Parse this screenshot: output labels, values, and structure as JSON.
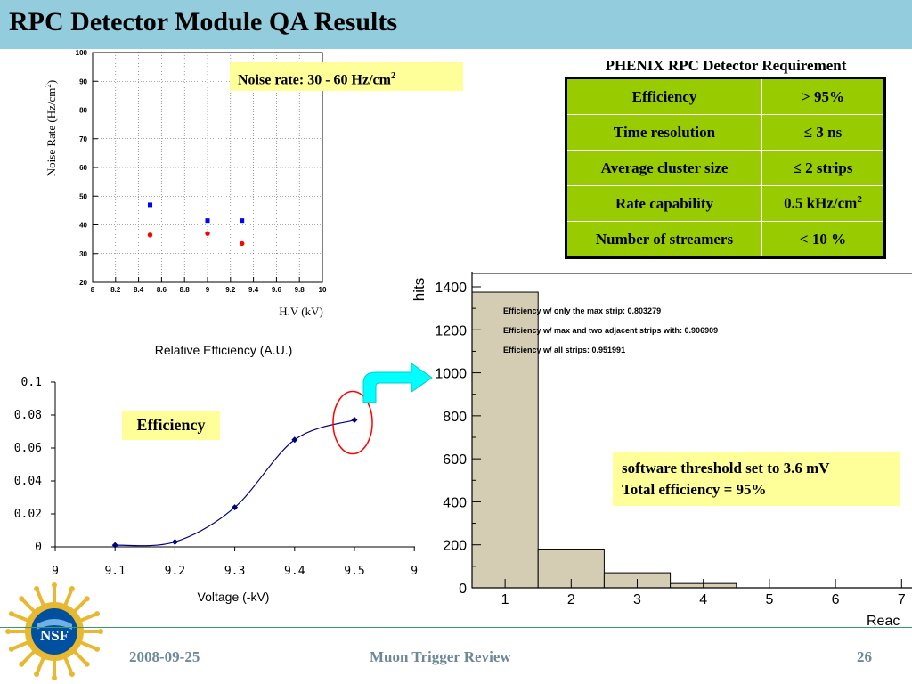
{
  "slide": {
    "title": "RPC Detector Module QA Results",
    "footer_date": "2008-09-25",
    "footer_center": "Muon Trigger Review",
    "page_number": "26",
    "logo_text": "NSF"
  },
  "colors": {
    "title_bar": "#93cddd",
    "table_fill": "#99cc00",
    "annotation_fill": "#ffff99",
    "hist_fill": "#d4cdb4",
    "arrow": "#00ffff",
    "circle": "#ff0000"
  },
  "annotations": {
    "noise_rate": "Noise rate: 30 - 60 Hz/cm",
    "noise_rate_superscript": "2",
    "efficiency_label": "Efficiency",
    "threshold_line1": "software threshold set to 3.6 mV",
    "threshold_line2": "Total efficiency = 95%"
  },
  "requirements": {
    "title": "PHENIX RPC Detector Requirement",
    "rows": [
      {
        "name": "Efficiency",
        "value": "> 95%"
      },
      {
        "name": "Time resolution",
        "value": "≤ 3 ns"
      },
      {
        "name": "Average cluster size",
        "value": "≤ 2 strips"
      },
      {
        "name": "Rate capability",
        "value": "0.5 kHz/cm",
        "value_sup": "2"
      },
      {
        "name": "Number of streamers",
        "value": "< 10 %"
      }
    ]
  },
  "chart_data": [
    {
      "type": "scatter",
      "title": "",
      "xlabel": "H.V (kV)",
      "ylabel": "Noise Rate (Hz/cm",
      "ylabel_sup": "2",
      "ylabel_close": ")",
      "xlim": [
        8,
        10
      ],
      "ylim": [
        20,
        100
      ],
      "grid": true,
      "x_ticks": [
        "8",
        "8.2",
        "8.4",
        "8.6",
        "8.8",
        "9",
        "9.2",
        "9.4",
        "9.6",
        "9.8",
        "10"
      ],
      "y_ticks": [
        "20",
        "30",
        "40",
        "50",
        "60",
        "70",
        "80",
        "90",
        "100"
      ],
      "series": [
        {
          "marker": "square",
          "color": "#0000ff",
          "points": [
            [
              8.5,
              47
            ],
            [
              9.0,
              41.5
            ],
            [
              9.3,
              41.5
            ]
          ]
        },
        {
          "marker": "circle",
          "color": "#ff0000",
          "points": [
            [
              8.5,
              36.5
            ],
            [
              9.0,
              37
            ],
            [
              9.3,
              33.5
            ]
          ]
        }
      ]
    },
    {
      "type": "line",
      "title": "Relative Efficiency (A.U.)",
      "xlabel": "Voltage (-kV)",
      "ylabel": "",
      "xlim": [
        9,
        9.6
      ],
      "ylim": [
        0,
        0.1
      ],
      "grid": false,
      "x_ticks": [
        "9",
        "9.1",
        "9.2",
        "9.3",
        "9.4",
        "9.5",
        "9"
      ],
      "y_ticks": [
        "0",
        "0.02",
        "0.04",
        "0.06",
        "0.08",
        "0.1"
      ],
      "series": [
        {
          "color": "#000080",
          "x": [
            9.1,
            9.2,
            9.3,
            9.4,
            9.5
          ],
          "y": [
            0.001,
            0.003,
            0.024,
            0.065,
            0.077
          ]
        }
      ]
    },
    {
      "type": "bar",
      "title": "",
      "xlabel": "Reac",
      "ylabel": "hits",
      "xlim": [
        0.5,
        7
      ],
      "ylim": [
        0,
        1400
      ],
      "grid": false,
      "x_ticks": [
        "1",
        "2",
        "3",
        "4",
        "5",
        "6",
        "7"
      ],
      "y_ticks": [
        "0",
        "200",
        "400",
        "600",
        "800",
        "1000",
        "1200",
        "1400"
      ],
      "categories": [
        "1",
        "2",
        "3",
        "4"
      ],
      "values": [
        1375,
        180,
        70,
        20
      ],
      "stats": [
        "Efficiency w/ only the max strip: 0.803279",
        "Efficiency w/ max and two adjacent strips with: 0.906909",
        "Efficiency w/ all strips: 0.951991"
      ]
    }
  ]
}
